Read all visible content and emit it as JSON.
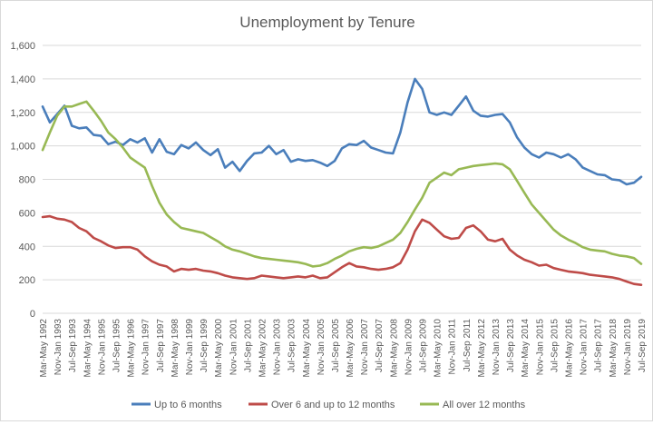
{
  "chart_data": {
    "type": "line",
    "title": "Unemployment by Tenure",
    "xlabel": "",
    "ylabel": "",
    "ylim": [
      0,
      1600
    ],
    "yticks": [
      "0",
      "200",
      "400",
      "600",
      "800",
      "1,000",
      "1,200",
      "1,400",
      "1,600"
    ],
    "grid": true,
    "legend_position": "bottom",
    "x_range": [
      "Mar-May 1992",
      "Jul-Sep 2019"
    ],
    "xtick_labels": [
      "Mar-May 1992",
      "Nov-Jan 1993",
      "Jul-Sep 1993",
      "Mar-May 1994",
      "Nov-Jan 1995",
      "Jul-Sep 1995",
      "Mar-May 1996",
      "Nov-Jan 1997",
      "Jul-Sep 1997",
      "Mar-May 1998",
      "Nov-Jan 1999",
      "Jul-Sep 1999",
      "Mar-May 2000",
      "Nov-Jan 2001",
      "Jul-Sep 2001",
      "Mar-May 2002",
      "Nov-Jan 2003",
      "Jul-Sep 2003",
      "Mar-May 2004",
      "Nov-Jan 2005",
      "Jul-Sep 2005",
      "Mar-May 2006",
      "Nov-Jan 2007",
      "Jul-Sep 2007",
      "Mar-May 2008",
      "Nov-Jan 2009",
      "Jul-Sep 2009",
      "Mar-May 2010",
      "Nov-Jan 2011",
      "Jul-Sep 2011",
      "Mar-May 2012",
      "Nov-Jan 2013",
      "Jul-Sep 2013",
      "Mar-May 2014",
      "Nov-Jan 2015",
      "Jul-Sep 2015",
      "Mar-May 2016",
      "Nov-Jan 2017",
      "Jul-Sep 2017",
      "Mar-May 2018",
      "Nov-Jan 2019",
      "Jul-Sep 2019"
    ],
    "series": [
      {
        "name": "Up to 6 months",
        "color": "#4a7ebb",
        "points": [
          [
            "Mar-May 1992",
            1235
          ],
          [
            "Jul-Sep 1992",
            1140
          ],
          [
            "Nov-Jan 1993",
            1190
          ],
          [
            "Mar-May 1993",
            1240
          ],
          [
            "Jul-Sep 1993",
            1120
          ],
          [
            "Nov-Jan 1994",
            1105
          ],
          [
            "Mar-May 1994",
            1110
          ],
          [
            "Jul-Sep 1994",
            1065
          ],
          [
            "Nov-Jan 1995",
            1060
          ],
          [
            "Mar-May 1995",
            1010
          ],
          [
            "Jul-Sep 1995",
            1025
          ],
          [
            "Nov-Jan 1996",
            1005
          ],
          [
            "Mar-May 1996",
            1040
          ],
          [
            "Jul-Sep 1996",
            1020
          ],
          [
            "Nov-Jan 1997",
            1045
          ],
          [
            "Mar-May 1997",
            960
          ],
          [
            "Jul-Sep 1997",
            1040
          ],
          [
            "Nov-Jan 1998",
            965
          ],
          [
            "Mar-May 1998",
            950
          ],
          [
            "Jul-Sep 1998",
            1005
          ],
          [
            "Nov-Jan 1999",
            985
          ],
          [
            "Mar-May 1999",
            1020
          ],
          [
            "Jul-Sep 1999",
            975
          ],
          [
            "Nov-Jan 2000",
            945
          ],
          [
            "Mar-May 2000",
            980
          ],
          [
            "Jul-Sep 2000",
            870
          ],
          [
            "Nov-Jan 2001",
            905
          ],
          [
            "Mar-May 2001",
            850
          ],
          [
            "Jul-Sep 2001",
            910
          ],
          [
            "Nov-Jan 2002",
            955
          ],
          [
            "Mar-May 2002",
            960
          ],
          [
            "Jul-Sep 2002",
            1000
          ],
          [
            "Nov-Jan 2003",
            950
          ],
          [
            "Mar-May 2003",
            975
          ],
          [
            "Jul-Sep 2003",
            905
          ],
          [
            "Nov-Jan 2004",
            920
          ],
          [
            "Mar-May 2004",
            910
          ],
          [
            "Jul-Sep 2004",
            915
          ],
          [
            "Nov-Jan 2005",
            900
          ],
          [
            "Mar-May 2005",
            880
          ],
          [
            "Jul-Sep 2005",
            910
          ],
          [
            "Nov-Jan 2006",
            985
          ],
          [
            "Mar-May 2006",
            1010
          ],
          [
            "Jul-Sep 2006",
            1005
          ],
          [
            "Nov-Jan 2007",
            1030
          ],
          [
            "Mar-May 2007",
            990
          ],
          [
            "Jul-Sep 2007",
            975
          ],
          [
            "Nov-Jan 2008",
            960
          ],
          [
            "Mar-May 2008",
            955
          ],
          [
            "Jul-Sep 2008",
            1080
          ],
          [
            "Nov-Jan 2009",
            1260
          ],
          [
            "Mar-May 2009",
            1400
          ],
          [
            "Jul-Sep 2009",
            1340
          ],
          [
            "Nov-Jan 2010",
            1200
          ],
          [
            "Mar-May 2010",
            1185
          ],
          [
            "Jul-Sep 2010",
            1200
          ],
          [
            "Nov-Jan 2011",
            1185
          ],
          [
            "Mar-May 2011",
            1240
          ],
          [
            "Jul-Sep 2011",
            1295
          ],
          [
            "Nov-Jan 2012",
            1210
          ],
          [
            "Mar-May 2012",
            1180
          ],
          [
            "Jul-Sep 2012",
            1175
          ],
          [
            "Nov-Jan 2013",
            1185
          ],
          [
            "Mar-May 2013",
            1190
          ],
          [
            "Jul-Sep 2013",
            1140
          ],
          [
            "Nov-Jan 2014",
            1050
          ],
          [
            "Mar-May 2014",
            990
          ],
          [
            "Jul-Sep 2014",
            950
          ],
          [
            "Nov-Jan 2015",
            930
          ],
          [
            "Mar-May 2015",
            960
          ],
          [
            "Jul-Sep 2015",
            950
          ],
          [
            "Nov-Jan 2016",
            930
          ],
          [
            "Mar-May 2016",
            950
          ],
          [
            "Jul-Sep 2016",
            920
          ],
          [
            "Nov-Jan 2017",
            870
          ],
          [
            "Mar-May 2017",
            850
          ],
          [
            "Jul-Sep 2017",
            830
          ],
          [
            "Nov-Jan 2018",
            825
          ],
          [
            "Mar-May 2018",
            800
          ],
          [
            "Jul-Sep 2018",
            795
          ],
          [
            "Nov-Jan 2019",
            770
          ],
          [
            "Mar-May 2019",
            780
          ],
          [
            "Jul-Sep 2019",
            815
          ]
        ]
      },
      {
        "name": "Over 6 and up to 12 months",
        "color": "#be4b48",
        "points": [
          [
            "Mar-May 1992",
            575
          ],
          [
            "Jul-Sep 1992",
            580
          ],
          [
            "Nov-Jan 1993",
            565
          ],
          [
            "Mar-May 1993",
            560
          ],
          [
            "Jul-Sep 1993",
            545
          ],
          [
            "Nov-Jan 1994",
            510
          ],
          [
            "Mar-May 1994",
            490
          ],
          [
            "Jul-Sep 1994",
            450
          ],
          [
            "Nov-Jan 1995",
            430
          ],
          [
            "Mar-May 1995",
            405
          ],
          [
            "Jul-Sep 1995",
            390
          ],
          [
            "Nov-Jan 1996",
            395
          ],
          [
            "Mar-May 1996",
            395
          ],
          [
            "Jul-Sep 1996",
            380
          ],
          [
            "Nov-Jan 1997",
            340
          ],
          [
            "Mar-May 1997",
            310
          ],
          [
            "Jul-Sep 1997",
            290
          ],
          [
            "Nov-Jan 1998",
            280
          ],
          [
            "Mar-May 1998",
            250
          ],
          [
            "Jul-Sep 1998",
            265
          ],
          [
            "Nov-Jan 1999",
            260
          ],
          [
            "Mar-May 1999",
            265
          ],
          [
            "Jul-Sep 1999",
            255
          ],
          [
            "Nov-Jan 2000",
            250
          ],
          [
            "Mar-May 2000",
            240
          ],
          [
            "Jul-Sep 2000",
            225
          ],
          [
            "Nov-Jan 2001",
            215
          ],
          [
            "Mar-May 2001",
            210
          ],
          [
            "Jul-Sep 2001",
            205
          ],
          [
            "Nov-Jan 2002",
            210
          ],
          [
            "Mar-May 2002",
            225
          ],
          [
            "Jul-Sep 2002",
            220
          ],
          [
            "Nov-Jan 2003",
            215
          ],
          [
            "Mar-May 2003",
            210
          ],
          [
            "Jul-Sep 2003",
            215
          ],
          [
            "Nov-Jan 2004",
            220
          ],
          [
            "Mar-May 2004",
            215
          ],
          [
            "Jul-Sep 2004",
            225
          ],
          [
            "Nov-Jan 2005",
            210
          ],
          [
            "Mar-May 2005",
            215
          ],
          [
            "Jul-Sep 2005",
            245
          ],
          [
            "Nov-Jan 2006",
            275
          ],
          [
            "Mar-May 2006",
            300
          ],
          [
            "Jul-Sep 2006",
            280
          ],
          [
            "Nov-Jan 2007",
            275
          ],
          [
            "Mar-May 2007",
            265
          ],
          [
            "Jul-Sep 2007",
            260
          ],
          [
            "Nov-Jan 2008",
            265
          ],
          [
            "Mar-May 2008",
            275
          ],
          [
            "Jul-Sep 2008",
            300
          ],
          [
            "Nov-Jan 2009",
            380
          ],
          [
            "Mar-May 2009",
            490
          ],
          [
            "Jul-Sep 2009",
            560
          ],
          [
            "Nov-Jan 2010",
            540
          ],
          [
            "Mar-May 2010",
            500
          ],
          [
            "Jul-Sep 2010",
            460
          ],
          [
            "Nov-Jan 2011",
            445
          ],
          [
            "Mar-May 2011",
            450
          ],
          [
            "Jul-Sep 2011",
            510
          ],
          [
            "Nov-Jan 2012",
            525
          ],
          [
            "Mar-May 2012",
            490
          ],
          [
            "Jul-Sep 2012",
            440
          ],
          [
            "Nov-Jan 2013",
            430
          ],
          [
            "Mar-May 2013",
            445
          ],
          [
            "Jul-Sep 2013",
            380
          ],
          [
            "Nov-Jan 2014",
            345
          ],
          [
            "Mar-May 2014",
            320
          ],
          [
            "Jul-Sep 2014",
            305
          ],
          [
            "Nov-Jan 2015",
            285
          ],
          [
            "Mar-May 2015",
            290
          ],
          [
            "Jul-Sep 2015",
            270
          ],
          [
            "Nov-Jan 2016",
            260
          ],
          [
            "Mar-May 2016",
            250
          ],
          [
            "Jul-Sep 2016",
            245
          ],
          [
            "Nov-Jan 2017",
            240
          ],
          [
            "Mar-May 2017",
            230
          ],
          [
            "Jul-Sep 2017",
            225
          ],
          [
            "Nov-Jan 2018",
            220
          ],
          [
            "Mar-May 2018",
            215
          ],
          [
            "Jul-Sep 2018",
            205
          ],
          [
            "Nov-Jan 2019",
            190
          ],
          [
            "Mar-May 2019",
            175
          ],
          [
            "Jul-Sep 2019",
            170
          ]
        ]
      },
      {
        "name": "All over 12 months",
        "color": "#98b954",
        "points": [
          [
            "Mar-May 1992",
            975
          ],
          [
            "Jul-Sep 1992",
            1080
          ],
          [
            "Nov-Jan 1993",
            1180
          ],
          [
            "Mar-May 1993",
            1235
          ],
          [
            "Jul-Sep 1993",
            1235
          ],
          [
            "Nov-Jan 1994",
            1250
          ],
          [
            "Mar-May 1994",
            1265
          ],
          [
            "Jul-Sep 1994",
            1210
          ],
          [
            "Nov-Jan 1995",
            1150
          ],
          [
            "Mar-May 1995",
            1080
          ],
          [
            "Jul-Sep 1995",
            1040
          ],
          [
            "Nov-Jan 1996",
            990
          ],
          [
            "Mar-May 1996",
            930
          ],
          [
            "Jul-Sep 1996",
            900
          ],
          [
            "Nov-Jan 1997",
            870
          ],
          [
            "Mar-May 1997",
            760
          ],
          [
            "Jul-Sep 1997",
            660
          ],
          [
            "Nov-Jan 1998",
            590
          ],
          [
            "Mar-May 1998",
            545
          ],
          [
            "Jul-Sep 1998",
            510
          ],
          [
            "Nov-Jan 1999",
            500
          ],
          [
            "Mar-May 1999",
            490
          ],
          [
            "Jul-Sep 1999",
            480
          ],
          [
            "Nov-Jan 2000",
            455
          ],
          [
            "Mar-May 2000",
            430
          ],
          [
            "Jul-Sep 2000",
            400
          ],
          [
            "Nov-Jan 2001",
            380
          ],
          [
            "Mar-May 2001",
            370
          ],
          [
            "Jul-Sep 2001",
            355
          ],
          [
            "Nov-Jan 2002",
            340
          ],
          [
            "Mar-May 2002",
            330
          ],
          [
            "Jul-Sep 2002",
            325
          ],
          [
            "Nov-Jan 2003",
            320
          ],
          [
            "Mar-May 2003",
            315
          ],
          [
            "Jul-Sep 2003",
            310
          ],
          [
            "Nov-Jan 2004",
            305
          ],
          [
            "Mar-May 2004",
            295
          ],
          [
            "Jul-Sep 2004",
            280
          ],
          [
            "Nov-Jan 2005",
            285
          ],
          [
            "Mar-May 2005",
            300
          ],
          [
            "Jul-Sep 2005",
            325
          ],
          [
            "Nov-Jan 2006",
            345
          ],
          [
            "Mar-May 2006",
            370
          ],
          [
            "Jul-Sep 2006",
            385
          ],
          [
            "Nov-Jan 2007",
            395
          ],
          [
            "Mar-May 2007",
            390
          ],
          [
            "Jul-Sep 2007",
            400
          ],
          [
            "Nov-Jan 2008",
            420
          ],
          [
            "Mar-May 2008",
            440
          ],
          [
            "Jul-Sep 2008",
            480
          ],
          [
            "Nov-Jan 2009",
            545
          ],
          [
            "Mar-May 2009",
            620
          ],
          [
            "Jul-Sep 2009",
            690
          ],
          [
            "Nov-Jan 2010",
            780
          ],
          [
            "Mar-May 2010",
            810
          ],
          [
            "Jul-Sep 2010",
            840
          ],
          [
            "Nov-Jan 2011",
            825
          ],
          [
            "Mar-May 2011",
            860
          ],
          [
            "Jul-Sep 2011",
            870
          ],
          [
            "Nov-Jan 2012",
            880
          ],
          [
            "Mar-May 2012",
            885
          ],
          [
            "Jul-Sep 2012",
            890
          ],
          [
            "Nov-Jan 2013",
            895
          ],
          [
            "Mar-May 2013",
            890
          ],
          [
            "Jul-Sep 2013",
            860
          ],
          [
            "Nov-Jan 2014",
            790
          ],
          [
            "Mar-May 2014",
            720
          ],
          [
            "Jul-Sep 2014",
            650
          ],
          [
            "Nov-Jan 2015",
            600
          ],
          [
            "Mar-May 2015",
            550
          ],
          [
            "Jul-Sep 2015",
            500
          ],
          [
            "Nov-Jan 2016",
            465
          ],
          [
            "Mar-May 2016",
            440
          ],
          [
            "Jul-Sep 2016",
            420
          ],
          [
            "Nov-Jan 2017",
            395
          ],
          [
            "Mar-May 2017",
            380
          ],
          [
            "Jul-Sep 2017",
            375
          ],
          [
            "Nov-Jan 2018",
            370
          ],
          [
            "Mar-May 2018",
            355
          ],
          [
            "Jul-Sep 2018",
            345
          ],
          [
            "Nov-Jan 2019",
            340
          ],
          [
            "Mar-May 2019",
            330
          ],
          [
            "Jul-Sep 2019",
            295
          ]
        ]
      }
    ]
  }
}
